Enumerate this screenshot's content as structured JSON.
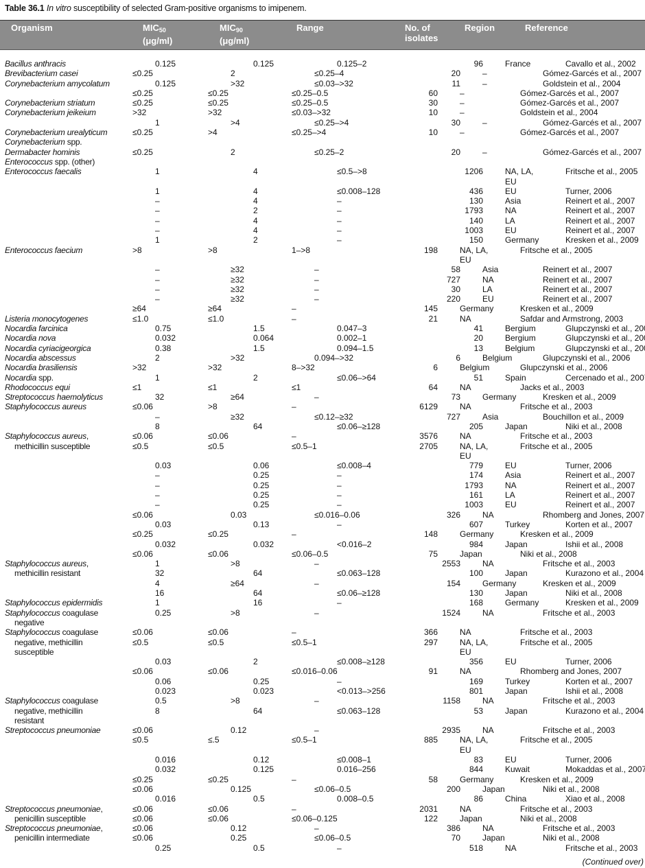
{
  "title": {
    "label": "Table 36.1",
    "italic": "In vitro",
    "text": " susceptibility of selected Gram-positive organisms to imipenem."
  },
  "header": {
    "organism": "Organism",
    "mic50": {
      "label": "MIC",
      "sub": "50",
      "unit": "(μg/ml)"
    },
    "mic90": {
      "label": "MIC",
      "sub": "90",
      "unit": "(μg/ml)"
    },
    "range": "Range",
    "isolates": "No. of\nisolates",
    "region": "Region",
    "reference": "Reference"
  },
  "rows": [
    {
      "org": "Bacillus anthracis",
      "m50": "0.125",
      "m90": "0.125",
      "rng": "0.125–2",
      "n": "96",
      "reg": "France",
      "ref": "Cavallo et al., 2002"
    },
    {
      "org": "Brevibacterium casei",
      "m50": "≤0.25",
      "m90": "2",
      "rng": "≤0.25–4",
      "n": "20",
      "reg": "–",
      "ref": "Gómez-Garcés et al., 2007"
    },
    {
      "org": "Corynebacterium amycolatum",
      "m50": "0.125",
      "m90": ">32",
      "rng": "≤0.03–>32",
      "n": "11",
      "reg": "–",
      "ref": "Goldstein et al., 2004"
    },
    {
      "org": "",
      "m50": "≤0.25",
      "m90": "≤0.25",
      "rng": "≤0.25–0.5",
      "n": "60",
      "reg": "–",
      "ref": "Gómez-Garcés et al., 2007"
    },
    {
      "org": "Corynebacterium striatum",
      "m50": "≤0.25",
      "m90": "≤0.25",
      "rng": "≤0.25–0.5",
      "n": "30",
      "reg": "–",
      "ref": "Gómez-Garcés et al., 2007"
    },
    {
      "org": "Corynebacterium jeikeium",
      "m50": ">32",
      "m90": ">32",
      "rng": "≤0.03–>32",
      "n": "10",
      "reg": "–",
      "ref": "Goldstein et al., 2004"
    },
    {
      "org": "",
      "m50": "1",
      "m90": ">4",
      "rng": "≤0.25–>4",
      "n": "30",
      "reg": "–",
      "ref": "Gómez-Garcés et al., 2007"
    },
    {
      "org": "Corynebacterium urealyticum",
      "m50": "≤0.25",
      "m90": ">4",
      "rng": "≤0.25–>4",
      "n": "10",
      "reg": "–",
      "ref": "Gómez-Garcés et al., 2007"
    },
    {
      "org": "Corynebacterium spp.",
      "m50": "",
      "m90": "",
      "rng": "",
      "n": "",
      "reg": "",
      "ref": ""
    },
    {
      "org": "Dermabacter hominis",
      "m50": "≤0.25",
      "m90": "2",
      "rng": "≤0.25–2",
      "n": "20",
      "reg": "–",
      "ref": "Gómez-Garcés et al., 2007"
    },
    {
      "org": "Enterococcus spp. (other)",
      "m50": "",
      "m90": "",
      "rng": "",
      "n": "",
      "reg": "",
      "ref": ""
    },
    {
      "org": "Enterococcus faecalis",
      "m50": "1",
      "m90": "4",
      "rng": "≤0.5–>8",
      "n": "1206",
      "reg": "NA, LA, EU",
      "ref": "Fritsche et al., 2005"
    },
    {
      "org": "",
      "m50": "1",
      "m90": "4",
      "rng": "≤0.008–128",
      "n": "436",
      "reg": "EU",
      "ref": "Turner, 2006"
    },
    {
      "org": "",
      "m50": "–",
      "m90": "4",
      "rng": "–",
      "n": "130",
      "reg": "Asia",
      "ref": "Reinert et al., 2007"
    },
    {
      "org": "",
      "m50": "–",
      "m90": "2",
      "rng": "–",
      "n": "1793",
      "reg": "NA",
      "ref": "Reinert et al., 2007"
    },
    {
      "org": "",
      "m50": "–",
      "m90": "4",
      "rng": "–",
      "n": "140",
      "reg": "LA",
      "ref": "Reinert et al., 2007"
    },
    {
      "org": "",
      "m50": "–",
      "m90": "4",
      "rng": "–",
      "n": "1003",
      "reg": "EU",
      "ref": "Reinert et al., 2007"
    },
    {
      "org": "",
      "m50": "1",
      "m90": "2",
      "rng": "–",
      "n": "150",
      "reg": "Germany",
      "ref": "Kresken et al., 2009"
    },
    {
      "org": "Enterococcus faecium",
      "m50": ">8",
      "m90": ">8",
      "rng": "1–>8",
      "n": "198",
      "reg": "NA, LA, EU",
      "ref": "Fritsche et al., 2005"
    },
    {
      "org": "",
      "m50": "–",
      "m90": "≥32",
      "rng": "–",
      "n": "58",
      "reg": "Asia",
      "ref": "Reinert et al., 2007"
    },
    {
      "org": "",
      "m50": "–",
      "m90": "≥32",
      "rng": "–",
      "n": "727",
      "reg": "NA",
      "ref": "Reinert et al., 2007"
    },
    {
      "org": "",
      "m50": "–",
      "m90": "≥32",
      "rng": "–",
      "n": "30",
      "reg": "LA",
      "ref": "Reinert et al., 2007"
    },
    {
      "org": "",
      "m50": "–",
      "m90": "≥32",
      "rng": "–",
      "n": "220",
      "reg": "EU",
      "ref": "Reinert et al., 2007"
    },
    {
      "org": "",
      "m50": "≥64",
      "m90": "≥64",
      "rng": "–",
      "n": "145",
      "reg": "Germany",
      "ref": "Kresken et al., 2009"
    },
    {
      "org": "Listeria monocytogenes",
      "m50": "≤1.0",
      "m90": "≤1.0",
      "rng": "–",
      "n": "21",
      "reg": "NA",
      "ref": "Safdar and Armstrong, 2003"
    },
    {
      "org": "Nocardia farcinica",
      "m50": "0.75",
      "m90": "1.5",
      "rng": "0.047–3",
      "n": "41",
      "reg": "Bergium",
      "ref": "Glupczynski et al., 2006"
    },
    {
      "org": "Nocardia nova",
      "m50": "0.032",
      "m90": "0.064",
      "rng": "0.002–1",
      "n": "20",
      "reg": "Bergium",
      "ref": "Glupczynski et al., 2006"
    },
    {
      "org": "Nocardia cyriacigeorgica",
      "m50": "0.38",
      "m90": "1.5",
      "rng": "0.094–1.5",
      "n": "13",
      "reg": "Belgium",
      "ref": "Glupczynski et al., 2006"
    },
    {
      "org": "Nocardia abscessus",
      "m50": "2",
      "m90": ">32",
      "rng": "0.094–>32",
      "n": "6",
      "reg": "Belgium",
      "ref": "Glupczynski et al., 2006"
    },
    {
      "org": "Nocardia brasiliensis",
      "m50": ">32",
      "m90": ">32",
      "rng": "8–>32",
      "n": "6",
      "reg": "Belgium",
      "ref": "Glupczynski et al., 2006"
    },
    {
      "org": "Nocardia spp.",
      "m50": "1",
      "m90": "2",
      "rng": "≤0.06–>64",
      "n": "51",
      "reg": "Spain",
      "ref": "Cercenado et al., 2007"
    },
    {
      "org": "Rhodococcus equi",
      "m50": "≤1",
      "m90": "≤1",
      "rng": "≤1",
      "n": "64",
      "reg": "NA",
      "ref": "Jacks et al., 2003"
    },
    {
      "org": "Streptococcus haemolyticus",
      "m50": "32",
      "m90": "≥64",
      "rng": "–",
      "n": "73",
      "reg": "Germany",
      "ref": "Kresken et al., 2009"
    },
    {
      "org": "Staphylococcus aureus",
      "m50": "≤0.06",
      "m90": ">8",
      "rng": "–",
      "n": "6129",
      "reg": "NA",
      "ref": "Fritsche et al., 2003"
    },
    {
      "org": "",
      "m50": "–",
      "m90": "≥32",
      "rng": "≤0.12–≥32",
      "n": "727",
      "reg": "Asia",
      "ref": "Bouchillon et al., 2009"
    },
    {
      "org": "",
      "m50": "8",
      "m90": "64",
      "rng": "≤0.06–≥128",
      "n": "205",
      "reg": "Japan",
      "ref": "Niki et al., 2008"
    },
    {
      "org": "Staphylococcus aureus,",
      "m50": "≤0.06",
      "m90": "≤0.06",
      "rng": "–",
      "n": "3576",
      "reg": "NA",
      "ref": "Fritsche et al., 2003"
    },
    {
      "org": "methicillin susceptible",
      "cont": true,
      "m50": "≤0.5",
      "m90": "≤0.5",
      "rng": "≤0.5–1",
      "n": "2705",
      "reg": "NA, LA, EU",
      "ref": "Fritsche et al., 2005"
    },
    {
      "org": "",
      "m50": "0.03",
      "m90": "0.06",
      "rng": "≤0.008–4",
      "n": "779",
      "reg": "EU",
      "ref": "Turner, 2006"
    },
    {
      "org": "",
      "m50": "–",
      "m90": "0.25",
      "rng": "–",
      "n": "174",
      "reg": "Asia",
      "ref": "Reinert et al., 2007"
    },
    {
      "org": "",
      "m50": "–",
      "m90": "0.25",
      "rng": "–",
      "n": "1793",
      "reg": "NA",
      "ref": "Reinert et al., 2007"
    },
    {
      "org": "",
      "m50": "–",
      "m90": "0.25",
      "rng": "–",
      "n": "161",
      "reg": "LA",
      "ref": "Reinert et al., 2007"
    },
    {
      "org": "",
      "m50": "–",
      "m90": "0.25",
      "rng": "–",
      "n": "1003",
      "reg": "EU",
      "ref": "Reinert et al., 2007"
    },
    {
      "org": "",
      "m50": "≤0.06",
      "m90": "0.03",
      "rng": "≤0.016–0.06",
      "n": "326",
      "reg": "NA",
      "ref": "Rhomberg and Jones, 2007"
    },
    {
      "org": "",
      "m50": "0.03",
      "m90": "0.13",
      "rng": "–",
      "n": "607",
      "reg": "Turkey",
      "ref": "Korten et al., 2007"
    },
    {
      "org": "",
      "m50": "≤0.25",
      "m90": "≤0.25",
      "rng": "–",
      "n": "148",
      "reg": "Germany",
      "ref": "Kresken et al., 2009"
    },
    {
      "org": "",
      "m50": "0.032",
      "m90": "0.032",
      "rng": "<0.016–2",
      "n": "984",
      "reg": "Japan",
      "ref": "Ishii et al., 2008"
    },
    {
      "org": "",
      "m50": "≤0.06",
      "m90": "≤0.06",
      "rng": "≤0.06–0.5",
      "n": "75",
      "reg": "Japan",
      "ref": "Niki et al., 2008"
    },
    {
      "org": "Staphylococcus aureus,",
      "m50": "1",
      "m90": ">8",
      "rng": "–",
      "n": "2553",
      "reg": "NA",
      "ref": "Fritsche et al., 2003"
    },
    {
      "org": "methicillin resistant",
      "cont": true,
      "m50": "32",
      "m90": "64",
      "rng": "≤0.063–128",
      "n": "100",
      "reg": "Japan",
      "ref": "Kurazono et al., 2004"
    },
    {
      "org": "",
      "m50": "4",
      "m90": "≥64",
      "rng": "–",
      "n": "154",
      "reg": "Germany",
      "ref": "Kresken et al., 2009"
    },
    {
      "org": "",
      "m50": "16",
      "m90": "64",
      "rng": "≤0.06–≥128",
      "n": "130",
      "reg": "Japan",
      "ref": "Niki et al., 2008"
    },
    {
      "org": "Staphylococcus epidermidis",
      "m50": "1",
      "m90": "16",
      "rng": "–",
      "n": "168",
      "reg": "Germany",
      "ref": "Kresken et al., 2009"
    },
    {
      "org": "Staphylococcus coagulase\nnegative",
      "m50": "0.25",
      "m90": ">8",
      "rng": "–",
      "n": "1524",
      "reg": "NA",
      "ref": "Fritsche et al., 2003"
    },
    {
      "org": "Staphylococcus coagulase",
      "m50": "≤0.06",
      "m90": "≤0.06",
      "rng": "–",
      "n": "366",
      "reg": "NA",
      "ref": "Fritsche et al., 2003"
    },
    {
      "org": "negative, methicillin\nsusceptible",
      "cont": true,
      "m50": "≤0.5",
      "m90": "≤0.5",
      "rng": "≤0.5–1",
      "n": "297",
      "reg": "NA, LA, EU",
      "ref": "Fritsche et al., 2005"
    },
    {
      "org": "",
      "m50": "0.03",
      "m90": "2",
      "rng": "≤0.008–≥128",
      "n": "356",
      "reg": "EU",
      "ref": "Turner, 2006"
    },
    {
      "org": "",
      "m50": "≤0.06",
      "m90": "≤0.06",
      "rng": "≤0.016–0.06",
      "n": "91",
      "reg": "NA",
      "ref": "Rhomberg and Jones, 2007"
    },
    {
      "org": "",
      "m50": "0.06",
      "m90": "0.25",
      "rng": "–",
      "n": "169",
      "reg": "Turkey",
      "ref": "Korten et al., 2007"
    },
    {
      "org": "",
      "m50": "0.023",
      "m90": "0.023",
      "rng": "<0.013–>256",
      "n": "801",
      "reg": "Japan",
      "ref": "Ishii et al., 2008"
    },
    {
      "org": "Staphylococcus coagulase",
      "m50": "0.5",
      "m90": ">8",
      "rng": "–",
      "n": "1158",
      "reg": "NA",
      "ref": "Fritsche et al., 2003"
    },
    {
      "org": "negative, methicillin\nresistant",
      "cont": true,
      "m50": "8",
      "m90": "64",
      "rng": "≤0.063–128",
      "n": "53",
      "reg": "Japan",
      "ref": "Kurazono et al., 2004"
    },
    {
      "org": "Streptococcus pneumoniae",
      "m50": "≤0.06",
      "m90": "0.12",
      "rng": "–",
      "n": "2935",
      "reg": "NA",
      "ref": "Fritsche et al., 2003"
    },
    {
      "org": "",
      "m50": "≤0.5",
      "m90": "≤.5",
      "rng": "≤0.5–1",
      "n": "885",
      "reg": "NA, LA, EU",
      "ref": "Fritsche et al., 2005"
    },
    {
      "org": "",
      "m50": "0.016",
      "m90": "0.12",
      "rng": "≤0.008–1",
      "n": "83",
      "reg": "EU",
      "ref": "Turner, 2006"
    },
    {
      "org": "",
      "m50": "0.032",
      "m90": "0.125",
      "rng": "0.016–256",
      "n": "844",
      "reg": "Kuwait",
      "ref": "Mokaddas et al., 2007"
    },
    {
      "org": "",
      "m50": "≤0.25",
      "m90": "≤0.25",
      "rng": "–",
      "n": "58",
      "reg": "Germany",
      "ref": "Kresken et al., 2009"
    },
    {
      "org": "",
      "m50": "≤0.06",
      "m90": "0.125",
      "rng": "≤0.06–0.5",
      "n": "200",
      "reg": "Japan",
      "ref": "Niki et al., 2008"
    },
    {
      "org": "",
      "m50": "0.016",
      "m90": "0.5",
      "rng": "0.008–0.5",
      "n": "86",
      "reg": "China",
      "ref": "Xiao et al., 2008"
    },
    {
      "org": "Streptococcus pneumoniae,",
      "m50": "≤0.06",
      "m90": "≤0.06",
      "rng": "–",
      "n": "2031",
      "reg": "NA",
      "ref": "Fritsche et al., 2003"
    },
    {
      "org": "penicillin susceptible",
      "cont": true,
      "m50": "≤0.06",
      "m90": "≤0.06",
      "rng": "≤0.06–0.125",
      "n": "122",
      "reg": "Japan",
      "ref": "Niki et al., 2008"
    },
    {
      "org": "Streptococcus pneumoniae,",
      "m50": "≤0.06",
      "m90": "0.12",
      "rng": "–",
      "n": "386",
      "reg": "NA",
      "ref": "Fritsche et al., 2003"
    },
    {
      "org": "penicillin intermediate",
      "cont": true,
      "m50": "≤0.06",
      "m90": "0.25",
      "rng": "≤0.06–0.5",
      "n": "70",
      "reg": "Japan",
      "ref": "Niki et al., 2008"
    },
    {
      "org": "",
      "m50": "0.25",
      "m90": "0.5",
      "rng": "–",
      "n": "518",
      "reg": "NA",
      "ref": "Fritsche et al., 2003"
    }
  ],
  "footer": "(Continued over)",
  "colors": {
    "header_bg": "#8c8c8c",
    "header_text": "#ffffff"
  }
}
